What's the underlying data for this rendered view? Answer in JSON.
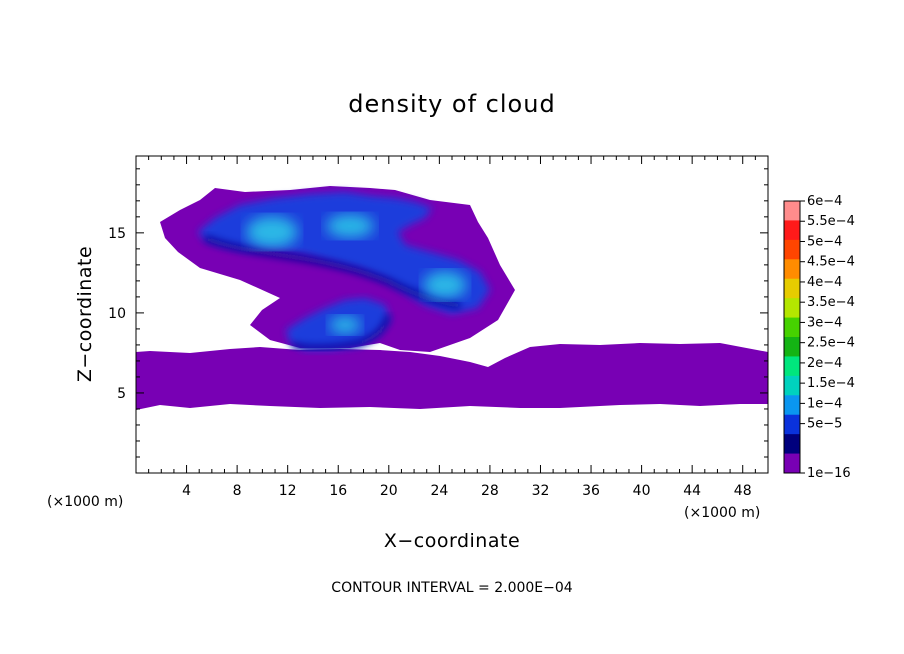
{
  "chart_data": {
    "type": "heatmap",
    "title": "density of cloud",
    "xlabel": "X−coordinate",
    "ylabel": "Z−coordinate",
    "x_unit": "(×1000 m)",
    "y_unit": "(×1000 m)",
    "xlim": [
      0,
      50
    ],
    "ylim": [
      0,
      19.8
    ],
    "x_ticks": [
      4,
      8,
      12,
      16,
      20,
      24,
      28,
      32,
      36,
      40,
      44,
      48
    ],
    "x_tick_labels": [
      "4",
      "8",
      "12",
      "16",
      "20",
      "24",
      "28",
      "32",
      "36",
      "40",
      "44",
      "48"
    ],
    "y_ticks": [
      5,
      10,
      15
    ],
    "y_tick_labels": [
      "5",
      "10",
      "15"
    ],
    "colorbar": {
      "labels": [
        "6e−4",
        "5.5e−4",
        "5e−4",
        "4.5e−4",
        "4e−4",
        "3.5e−4",
        "3e−4",
        "2.5e−4",
        "2e−4",
        "1.5e−4",
        "1e−4",
        "5e−5",
        "1e−16"
      ],
      "colors": [
        "#ff8c8c",
        "#ff1a1a",
        "#ff4500",
        "#ff8c00",
        "#e6cc00",
        "#b4e600",
        "#46d200",
        "#14b414",
        "#00e67d",
        "#00d2be",
        "#0a96f0",
        "#0a32dc",
        "#00007d",
        "#7800b4"
      ]
    },
    "colors": {
      "low": "#7800b4",
      "mid": "#1e3cdc",
      "deep": "#0a0a9a",
      "high": "#2ab8e6"
    },
    "footnote": "CONTOUR INTERVAL = 2.000E−04"
  }
}
